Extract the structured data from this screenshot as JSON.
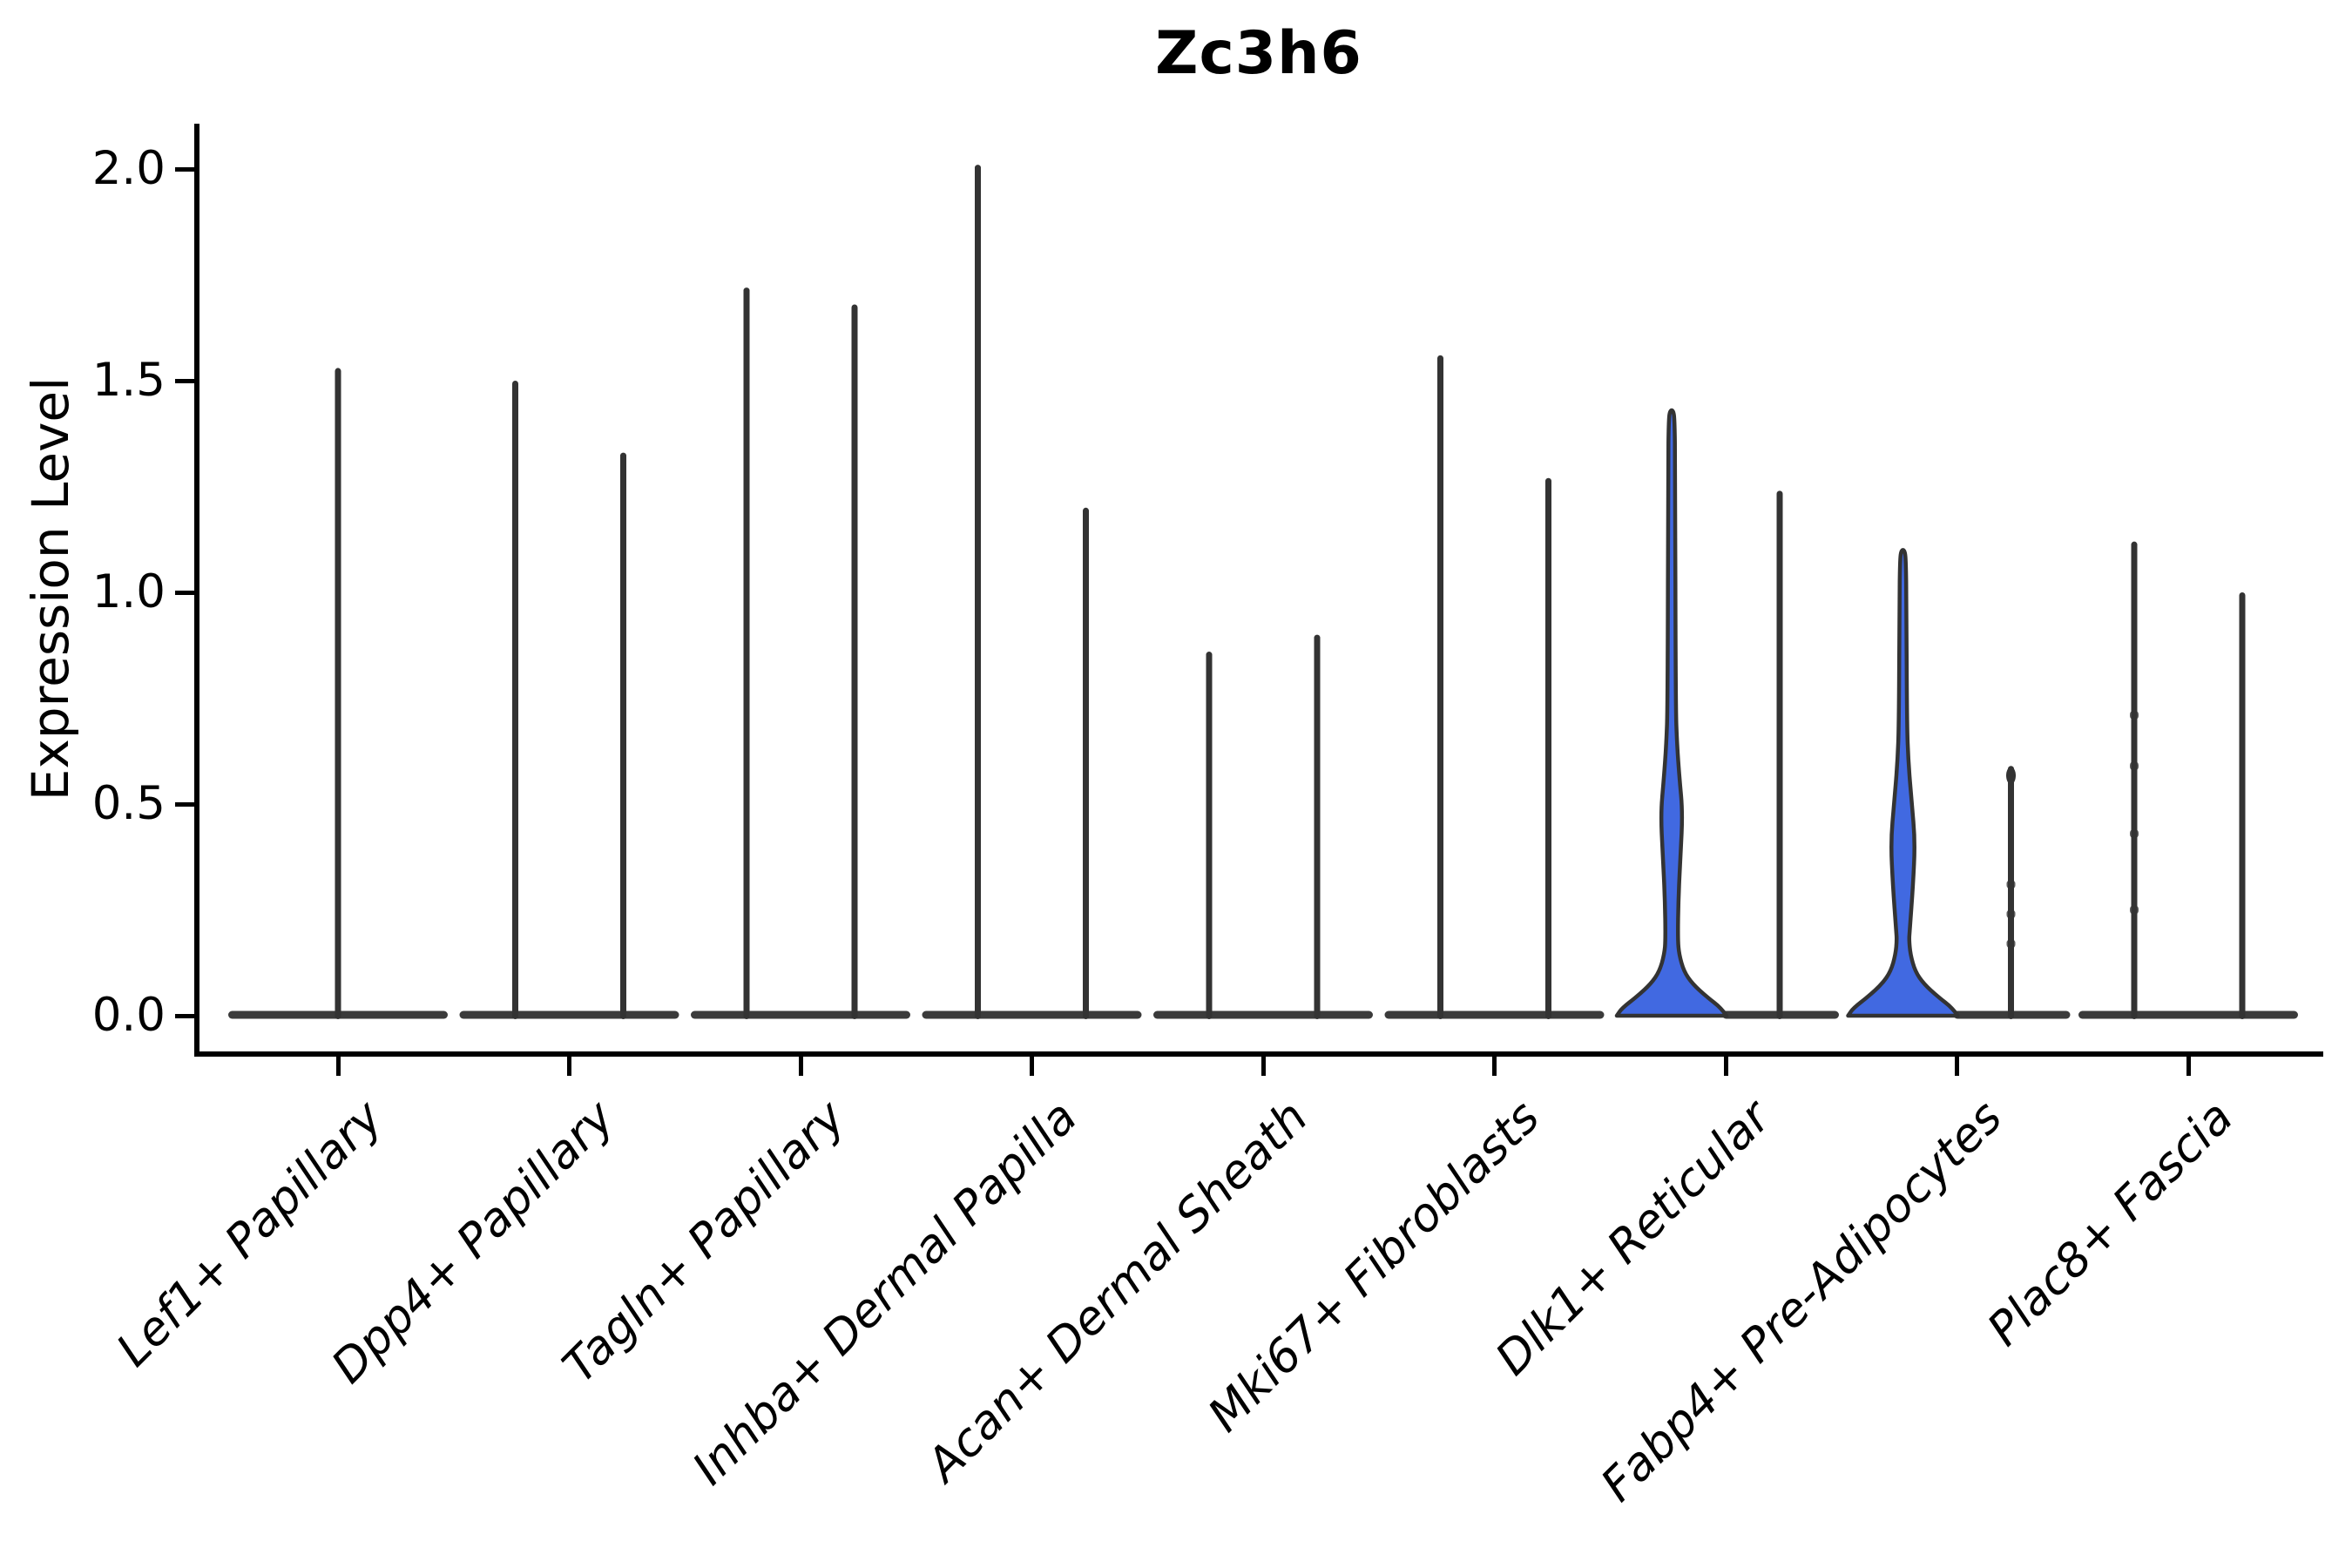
{
  "chart_data": {
    "type": "violin",
    "title": "Zc3h6",
    "xlabel": "",
    "ylabel": "Expression Level",
    "ylim": [
      0,
      2.09
    ],
    "yticks": [
      0.0,
      0.5,
      1.0,
      1.5,
      2.0
    ],
    "ytick_labels": [
      "0.0",
      "0.5",
      "1.0",
      "1.5",
      "2.0"
    ],
    "grid": false,
    "legend": false,
    "x_label_rotation_deg": 45,
    "x_labels_italic": true,
    "categories": [
      "Lef1+ Papillary",
      "Dpp4+ Papillary",
      "Tagln+ Papillary",
      "Inhba+ Dermal Papilla",
      "Acan+ Dermal Sheath",
      "Mki67+ Fibroblasts",
      "Dlk1+ Reticular",
      "Fabp4+ Pre-Adipocytes",
      "Plac8+ Fascia"
    ],
    "violins": [
      {
        "category": "Lef1+ Papillary",
        "items": [
          {
            "pos": "center",
            "max": 1.53,
            "filled": false
          }
        ]
      },
      {
        "category": "Dpp4+ Papillary",
        "items": [
          {
            "pos": "left",
            "max": 1.5,
            "filled": false
          },
          {
            "pos": "right",
            "max": 1.33,
            "filled": false
          }
        ]
      },
      {
        "category": "Tagln+ Papillary",
        "items": [
          {
            "pos": "left",
            "max": 1.72,
            "filled": false
          },
          {
            "pos": "right",
            "max": 1.68,
            "filled": false
          }
        ]
      },
      {
        "category": "Inhba+ Dermal Papilla",
        "items": [
          {
            "pos": "left",
            "max": 2.01,
            "filled": false
          },
          {
            "pos": "right",
            "max": 1.2,
            "filled": false
          }
        ]
      },
      {
        "category": "Acan+ Dermal Sheath",
        "items": [
          {
            "pos": "left",
            "max": 0.86,
            "filled": false
          },
          {
            "pos": "right",
            "max": 0.9,
            "filled": false
          }
        ]
      },
      {
        "category": "Mki67+ Fibroblasts",
        "items": [
          {
            "pos": "left",
            "max": 1.56,
            "filled": false
          },
          {
            "pos": "right",
            "max": 1.27,
            "filled": false
          }
        ]
      },
      {
        "category": "Dlk1+ Reticular",
        "items": [
          {
            "pos": "left",
            "max": 1.43,
            "filled": true,
            "bulge": {
              "lo": 0.28,
              "peak": 0.48,
              "hi": 0.64,
              "halfwidth": 12.5
            }
          },
          {
            "pos": "right",
            "max": 1.24,
            "filled": false
          }
        ]
      },
      {
        "category": "Fabp4+ Pre-Adipocytes",
        "items": [
          {
            "pos": "left",
            "max": 1.1,
            "filled": true,
            "bulge": {
              "lo": 0.2,
              "peak": 0.41,
              "hi": 0.6,
              "halfwidth": 14
            }
          },
          {
            "pos": "right",
            "max": 0.59,
            "filled": false,
            "knob": true,
            "bumps": [
              0.17,
              0.24,
              0.31
            ]
          }
        ]
      },
      {
        "category": "Plac8+ Fascia",
        "items": [
          {
            "pos": "left",
            "max": 1.12,
            "filled": false,
            "bumps": [
              0.25,
              0.43,
              0.59,
              0.71
            ]
          },
          {
            "pos": "right",
            "max": 1.0,
            "filled": false
          }
        ]
      }
    ],
    "colors": {
      "violin_fill": "#4169E1",
      "violin_line": "#333333",
      "base_bar": "#3b3b3b",
      "axis": "#000000",
      "background": "#ffffff"
    }
  }
}
